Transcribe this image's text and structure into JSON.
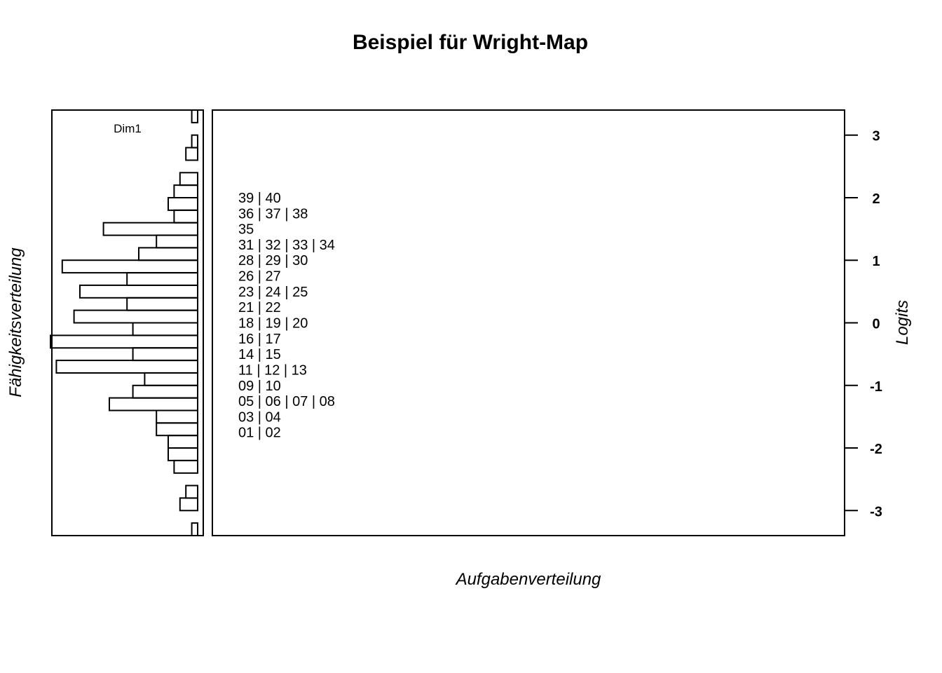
{
  "chart_data": {
    "type": "wright-map",
    "title": "Beispiel für Wright-Map",
    "xlabel": "Aufgabenverteilung",
    "ylabel_left": "Fähigkeitsverteilung",
    "ylabel_right": "Logits",
    "dimension_label": "Dim1",
    "ylim": [
      -3.4,
      3.4
    ],
    "y_ticks": [
      3,
      2,
      1,
      0,
      -1,
      -2,
      -3
    ],
    "person_histogram": {
      "bin_width": 0.2,
      "bins": [
        {
          "lower": -3.4,
          "upper": -3.2,
          "count": 1
        },
        {
          "lower": -3.2,
          "upper": -3.0,
          "count": 0
        },
        {
          "lower": -3.0,
          "upper": -2.8,
          "count": 3
        },
        {
          "lower": -2.8,
          "upper": -2.6,
          "count": 2
        },
        {
          "lower": -2.6,
          "upper": -2.4,
          "count": 0
        },
        {
          "lower": -2.4,
          "upper": -2.2,
          "count": 4
        },
        {
          "lower": -2.2,
          "upper": -2.0,
          "count": 5
        },
        {
          "lower": -2.0,
          "upper": -1.8,
          "count": 5
        },
        {
          "lower": -1.8,
          "upper": -1.6,
          "count": 7
        },
        {
          "lower": -1.6,
          "upper": -1.4,
          "count": 7
        },
        {
          "lower": -1.4,
          "upper": -1.2,
          "count": 15
        },
        {
          "lower": -1.2,
          "upper": -1.0,
          "count": 11
        },
        {
          "lower": -1.0,
          "upper": -0.8,
          "count": 9
        },
        {
          "lower": -0.8,
          "upper": -0.6,
          "count": 24
        },
        {
          "lower": -0.6,
          "upper": -0.4,
          "count": 11
        },
        {
          "lower": -0.4,
          "upper": -0.2,
          "count": 25
        },
        {
          "lower": -0.2,
          "upper": 0.0,
          "count": 11
        },
        {
          "lower": 0.0,
          "upper": 0.2,
          "count": 21
        },
        {
          "lower": 0.2,
          "upper": 0.4,
          "count": 12
        },
        {
          "lower": 0.4,
          "upper": 0.6,
          "count": 20
        },
        {
          "lower": 0.6,
          "upper": 0.8,
          "count": 12
        },
        {
          "lower": 0.8,
          "upper": 1.0,
          "count": 23
        },
        {
          "lower": 1.0,
          "upper": 1.2,
          "count": 10
        },
        {
          "lower": 1.2,
          "upper": 1.4,
          "count": 7
        },
        {
          "lower": 1.4,
          "upper": 1.6,
          "count": 16
        },
        {
          "lower": 1.6,
          "upper": 1.8,
          "count": 4
        },
        {
          "lower": 1.8,
          "upper": 2.0,
          "count": 5
        },
        {
          "lower": 2.0,
          "upper": 2.2,
          "count": 4
        },
        {
          "lower": 2.2,
          "upper": 2.4,
          "count": 3
        },
        {
          "lower": 2.4,
          "upper": 2.6,
          "count": 0
        },
        {
          "lower": 2.6,
          "upper": 2.8,
          "count": 2
        },
        {
          "lower": 2.8,
          "upper": 3.0,
          "count": 1
        },
        {
          "lower": 3.0,
          "upper": 3.2,
          "count": 0
        },
        {
          "lower": 3.2,
          "upper": 3.4,
          "count": 1
        }
      ]
    },
    "items": [
      {
        "label": "39 | 40",
        "logit": 2.0
      },
      {
        "label": "36 | 37 | 38",
        "logit": 1.75
      },
      {
        "label": "35",
        "logit": 1.5
      },
      {
        "label": "31 | 32 | 33 | 34",
        "logit": 1.25
      },
      {
        "label": "28 | 29 | 30",
        "logit": 1.0
      },
      {
        "label": "26 | 27",
        "logit": 0.75
      },
      {
        "label": "23 | 24 | 25",
        "logit": 0.5
      },
      {
        "label": "21 | 22",
        "logit": 0.25
      },
      {
        "label": "18 | 19 | 20",
        "logit": 0.0
      },
      {
        "label": "16 | 17",
        "logit": -0.25
      },
      {
        "label": "14 | 15",
        "logit": -0.5
      },
      {
        "label": "11 | 12 | 13",
        "logit": -0.75
      },
      {
        "label": "09 | 10",
        "logit": -1.0
      },
      {
        "label": "05 | 06 | 07 | 08",
        "logit": -1.25
      },
      {
        "label": "03 | 04",
        "logit": -1.5
      },
      {
        "label": "01 | 02",
        "logit": -1.75
      }
    ]
  }
}
